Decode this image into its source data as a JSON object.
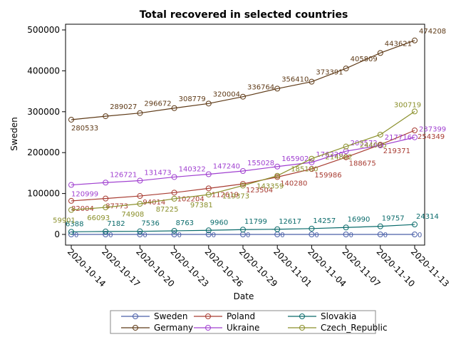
{
  "chart_data": {
    "type": "line",
    "title": "Total recovered in selected countries",
    "xlabel": "Date",
    "ylabel": "Sweden",
    "x": [
      "2020-10-14",
      "2020-10-17",
      "2020-10-20",
      "2020-10-23",
      "2020-10-26",
      "2020-10-29",
      "2020-11-01",
      "2020-11-04",
      "2020-11-07",
      "2020-11-10",
      "2020-11-13"
    ],
    "ylim": [
      0,
      520000
    ],
    "yticks": [
      0,
      100000,
      200000,
      300000,
      400000,
      500000
    ],
    "ytick_labels": [
      "0",
      "100000",
      "200000",
      "300000",
      "400000",
      "500000"
    ],
    "grid": false,
    "legend_position": "bottom",
    "series": [
      {
        "name": "Sweden",
        "color": "#4a5fa8",
        "values": [
          0,
          0,
          0,
          0,
          0,
          0,
          0,
          0,
          0,
          0,
          0
        ],
        "labels": [
          "0",
          "0",
          "0",
          "0",
          "0",
          "0",
          "0",
          "0",
          "0",
          "0",
          "0"
        ]
      },
      {
        "name": "Germany",
        "color": "#5e3a17",
        "values": [
          280533,
          289027,
          296672,
          308779,
          320004,
          336764,
          356410,
          373391,
          405809,
          443621,
          474208
        ],
        "labels": [
          "280533",
          "289027",
          "296672",
          "308779",
          "320004",
          "336764",
          "356410",
          "373391",
          "405809",
          "443621",
          "474208"
        ]
      },
      {
        "name": "Poland",
        "color": "#a83c32",
        "values": [
          82004,
          87773,
          94014,
          102204,
          112619,
          123504,
          140280,
          159986,
          188675,
          219371,
          254349
        ],
        "labels": [
          "82004",
          "87773",
          "94014",
          "102204",
          "112619",
          "123504",
          "140280",
          "159986",
          "188675",
          "219371",
          "254349"
        ]
      },
      {
        "name": "Ukraine",
        "color": "#a040d0",
        "values": [
          120999,
          126721,
          131473,
          140322,
          147240,
          155028,
          165902,
          176220,
          203572,
          217716,
          237399
        ],
        "labels": [
          "120999",
          "126721",
          "131473",
          "140322",
          "147240",
          "155028",
          "165902",
          "176220",
          "203572",
          "217716",
          "237399"
        ]
      },
      {
        "name": "Slovakia",
        "color": "#0a6b6b",
        "values": [
          6388,
          7182,
          7536,
          8763,
          9960,
          11799,
          12617,
          14257,
          16990,
          19757,
          24314
        ],
        "labels": [
          "6388",
          "7182",
          "7536",
          "8763",
          "9960",
          "11799",
          "12617",
          "14257",
          "16990",
          "19757",
          "24314"
        ]
      },
      {
        "name": "Czech_Republic",
        "color": "#8a8f2a",
        "values": [
          59901,
          66093,
          74908,
          87225,
          97381,
          119373,
          143359,
          185180,
          214882,
          244005,
          300719
        ],
        "labels": [
          "59901",
          "66093",
          "74908",
          "87225",
          "97381",
          "119373",
          "143359",
          "185180",
          "214882",
          "244005",
          "300719"
        ]
      }
    ],
    "legend_order": [
      "Sweden",
      "Poland",
      "Slovakia",
      "Germany",
      "Ukraine",
      "Czech_Republic"
    ]
  }
}
